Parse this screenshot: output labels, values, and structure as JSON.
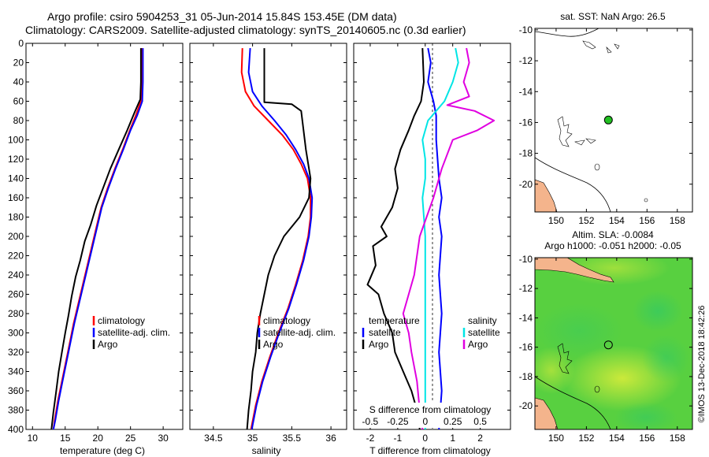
{
  "title": {
    "line1": "Argo profile: csiro 5904253_31 05-Jun-2014 15.84S 153.45E (DM data)",
    "line2": "Climatology: CARS2009. Satellite-adjusted climatology: synTS_20140605.nc (0.3d earlier)"
  },
  "colors": {
    "climatology": "#ff0000",
    "satellite": "#0000ff",
    "argo": "#000000",
    "satellite_s": "#00e5e5",
    "argo_s": "#e000e0",
    "green": "#22c022",
    "land": "#f4b48c"
  },
  "chart_data": [
    {
      "type": "line",
      "id": "temperature",
      "xlabel": "temperature (deg C)",
      "xlim": [
        9,
        33
      ],
      "ylim": [
        400,
        0
      ],
      "xticks": [
        "10",
        "15",
        "20",
        "25",
        "30"
      ],
      "yticks": [
        "0",
        "20",
        "40",
        "60",
        "80",
        "100",
        "120",
        "140",
        "160",
        "180",
        "200",
        "220",
        "240",
        "260",
        "280",
        "300",
        "320",
        "340",
        "360",
        "380",
        "400"
      ],
      "legend": [
        "climatology",
        "satellite-adj. clim.",
        "Argo"
      ],
      "series": [
        {
          "name": "climatology",
          "color": "#ff0000",
          "points": [
            [
              26.7,
              5
            ],
            [
              26.7,
              40
            ],
            [
              26.6,
              60
            ],
            [
              25.8,
              75
            ],
            [
              24.9,
              90
            ],
            [
              23.8,
              110
            ],
            [
              22.6,
              130
            ],
            [
              21.5,
              150
            ],
            [
              20.5,
              170
            ],
            [
              19.8,
              190
            ],
            [
              19.1,
              210
            ],
            [
              18.4,
              230
            ],
            [
              17.7,
              250
            ],
            [
              17.0,
              270
            ],
            [
              16.3,
              290
            ],
            [
              15.7,
              310
            ],
            [
              15.1,
              330
            ],
            [
              14.5,
              350
            ],
            [
              13.9,
              370
            ],
            [
              13.4,
              390
            ],
            [
              13.2,
              400
            ]
          ]
        },
        {
          "name": "satellite-adj. clim.",
          "color": "#0000ff",
          "points": [
            [
              26.9,
              5
            ],
            [
              26.9,
              40
            ],
            [
              26.8,
              60
            ],
            [
              26.0,
              75
            ],
            [
              25.0,
              90
            ],
            [
              23.9,
              110
            ],
            [
              22.7,
              130
            ],
            [
              21.6,
              150
            ],
            [
              20.6,
              170
            ],
            [
              19.9,
              190
            ],
            [
              19.2,
              210
            ],
            [
              18.5,
              230
            ],
            [
              17.8,
              250
            ],
            [
              17.1,
              270
            ],
            [
              16.4,
              290
            ],
            [
              15.8,
              310
            ],
            [
              15.2,
              330
            ],
            [
              14.6,
              350
            ],
            [
              14.0,
              370
            ],
            [
              13.5,
              390
            ],
            [
              13.2,
              400
            ]
          ]
        },
        {
          "name": "Argo",
          "color": "#000000",
          "points": [
            [
              26.6,
              5
            ],
            [
              26.6,
              40
            ],
            [
              26.5,
              58
            ],
            [
              25.6,
              72
            ],
            [
              24.5,
              90
            ],
            [
              23.2,
              110
            ],
            [
              21.9,
              130
            ],
            [
              20.8,
              150
            ],
            [
              19.8,
              168
            ],
            [
              18.9,
              188
            ],
            [
              18.0,
              205
            ],
            [
              17.3,
              225
            ],
            [
              16.6,
              242
            ],
            [
              16.0,
              262
            ],
            [
              15.5,
              282
            ],
            [
              15.0,
              300
            ],
            [
              14.5,
              320
            ],
            [
              14.0,
              340
            ],
            [
              13.6,
              362
            ],
            [
              13.2,
              382
            ],
            [
              12.9,
              400
            ]
          ]
        }
      ]
    },
    {
      "type": "line",
      "id": "salinity",
      "xlabel": "salinity",
      "xlim": [
        34.2,
        36.2
      ],
      "ylim": [
        400,
        0
      ],
      "xticks": [
        "34.5",
        "35",
        "35.5",
        "36"
      ],
      "legend": [
        "climatology",
        "satellite-adj. clim.",
        "Argo"
      ],
      "series": [
        {
          "name": "climatology",
          "color": "#ff0000",
          "points": [
            [
              34.87,
              5
            ],
            [
              34.86,
              30
            ],
            [
              34.91,
              50
            ],
            [
              35.02,
              65
            ],
            [
              35.2,
              80
            ],
            [
              35.38,
              95
            ],
            [
              35.52,
              110
            ],
            [
              35.62,
              125
            ],
            [
              35.7,
              140
            ],
            [
              35.74,
              160
            ],
            [
              35.74,
              180
            ],
            [
              35.71,
              200
            ],
            [
              35.64,
              225
            ],
            [
              35.55,
              250
            ],
            [
              35.45,
              275
            ],
            [
              35.33,
              300
            ],
            [
              35.22,
              325
            ],
            [
              35.12,
              350
            ],
            [
              35.04,
              375
            ],
            [
              34.98,
              400
            ]
          ]
        },
        {
          "name": "satellite-adj. clim.",
          "color": "#0000ff",
          "points": [
            [
              34.97,
              5
            ],
            [
              34.95,
              30
            ],
            [
              35.0,
              50
            ],
            [
              35.12,
              65
            ],
            [
              35.28,
              80
            ],
            [
              35.43,
              95
            ],
            [
              35.55,
              110
            ],
            [
              35.65,
              125
            ],
            [
              35.72,
              140
            ],
            [
              35.76,
              160
            ],
            [
              35.75,
              180
            ],
            [
              35.72,
              200
            ],
            [
              35.65,
              225
            ],
            [
              35.56,
              250
            ],
            [
              35.46,
              275
            ],
            [
              35.34,
              300
            ],
            [
              35.23,
              325
            ],
            [
              35.13,
              350
            ],
            [
              35.05,
              375
            ],
            [
              34.99,
              400
            ]
          ]
        },
        {
          "name": "Argo",
          "color": "#000000",
          "points": [
            [
              35.15,
              5
            ],
            [
              35.15,
              61
            ],
            [
              35.5,
              63
            ],
            [
              35.62,
              70
            ],
            [
              35.65,
              90
            ],
            [
              35.68,
              110
            ],
            [
              35.74,
              140
            ],
            [
              35.72,
              160
            ],
            [
              35.6,
              180
            ],
            [
              35.4,
              200
            ],
            [
              35.28,
              220
            ],
            [
              35.2,
              240
            ],
            [
              35.15,
              260
            ],
            [
              35.1,
              280
            ],
            [
              35.06,
              300
            ],
            [
              35.04,
              320
            ],
            [
              35.0,
              340
            ],
            [
              34.98,
              360
            ],
            [
              34.95,
              380
            ],
            [
              34.93,
              400
            ]
          ]
        }
      ]
    },
    {
      "type": "line",
      "id": "difference",
      "xlabel": "T difference from climatology",
      "xlabel_top": "S difference from climatology",
      "xlim": [
        -2.6,
        3.1
      ],
      "ylim": [
        400,
        0
      ],
      "xticks": [
        "-2",
        "-1",
        "0",
        "1",
        "2"
      ],
      "xticks_top": [
        "-0.5",
        "-0.25",
        "0",
        "0.25",
        "0.5"
      ],
      "legend_temperature_title": "temperature",
      "legend_temperature": [
        "satellite",
        "Argo"
      ],
      "legend_salinity_title": "salinity",
      "legend_salinity": [
        "satellite",
        "Argo"
      ],
      "series": [
        {
          "name": "temperature satellite",
          "color": "#0000ff",
          "points": [
            [
              0.1,
              5
            ],
            [
              0.2,
              20
            ],
            [
              0.1,
              40
            ],
            [
              0.3,
              60
            ],
            [
              0.4,
              75
            ],
            [
              0.4,
              100
            ],
            [
              0.5,
              140
            ],
            [
              0.6,
              160
            ],
            [
              0.5,
              180
            ],
            [
              0.6,
              200
            ],
            [
              0.5,
              240
            ],
            [
              0.6,
              280
            ],
            [
              0.5,
              320
            ],
            [
              0.6,
              360
            ],
            [
              0.5,
              400
            ]
          ]
        },
        {
          "name": "temperature Argo",
          "color": "#000000",
          "points": [
            [
              -0.1,
              5
            ],
            [
              -0.05,
              40
            ],
            [
              -0.15,
              60
            ],
            [
              -0.4,
              75
            ],
            [
              -0.6,
              90
            ],
            [
              -0.9,
              110
            ],
            [
              -1.1,
              130
            ],
            [
              -1.0,
              150
            ],
            [
              -1.2,
              170
            ],
            [
              -1.6,
              190
            ],
            [
              -1.4,
              200
            ],
            [
              -1.9,
              210
            ],
            [
              -1.8,
              230
            ],
            [
              -2.1,
              250
            ],
            [
              -1.7,
              260
            ],
            [
              -1.5,
              280
            ],
            [
              -1.2,
              300
            ],
            [
              -1.1,
              320
            ],
            [
              -0.8,
              340
            ],
            [
              -0.5,
              360
            ],
            [
              -0.3,
              380
            ],
            [
              -0.2,
              400
            ]
          ]
        },
        {
          "name": "salinity satellite",
          "color": "#00e5e5",
          "points": [
            [
              1.1,
              5
            ],
            [
              1.2,
              20
            ],
            [
              1.0,
              40
            ],
            [
              0.7,
              60
            ],
            [
              0.1,
              80
            ],
            [
              -0.1,
              100
            ],
            [
              0.0,
              120
            ],
            [
              0.0,
              140
            ],
            [
              -0.1,
              160
            ],
            [
              0.0,
              200
            ],
            [
              0.0,
              260
            ],
            [
              0.0,
              320
            ],
            [
              0.0,
              360
            ],
            [
              0.0,
              400
            ]
          ]
        },
        {
          "name": "salinity Argo",
          "color": "#e000e0",
          "points": [
            [
              1.5,
              5
            ],
            [
              1.6,
              20
            ],
            [
              1.4,
              40
            ],
            [
              1.6,
              55
            ],
            [
              0.8,
              64
            ],
            [
              1.8,
              70
            ],
            [
              2.5,
              80
            ],
            [
              1.9,
              90
            ],
            [
              1.0,
              100
            ],
            [
              0.6,
              130
            ],
            [
              0.3,
              160
            ],
            [
              -0.2,
              200
            ],
            [
              -0.4,
              240
            ],
            [
              -0.8,
              280
            ],
            [
              -0.6,
              300
            ],
            [
              -0.5,
              320
            ],
            [
              -0.3,
              350
            ],
            [
              -0.2,
              380
            ],
            [
              -0.1,
              400
            ]
          ]
        }
      ]
    }
  ],
  "maps": {
    "xticks": [
      "150",
      "152",
      "154",
      "156",
      "158"
    ],
    "yticks": [
      "-10",
      "-12",
      "-14",
      "-16",
      "-18",
      "-20"
    ],
    "sst_title": "sat. SST: NaN Argo: 26.5",
    "sla_title1": "Altim. SLA: -0.0084",
    "sla_title2": "Argo h1000: -0.051 h2000: -0.05",
    "float_position": {
      "lon": 153.45,
      "lat": -15.84
    }
  },
  "watermark": "©IMOS 13-Dec-2018 18:42:26"
}
